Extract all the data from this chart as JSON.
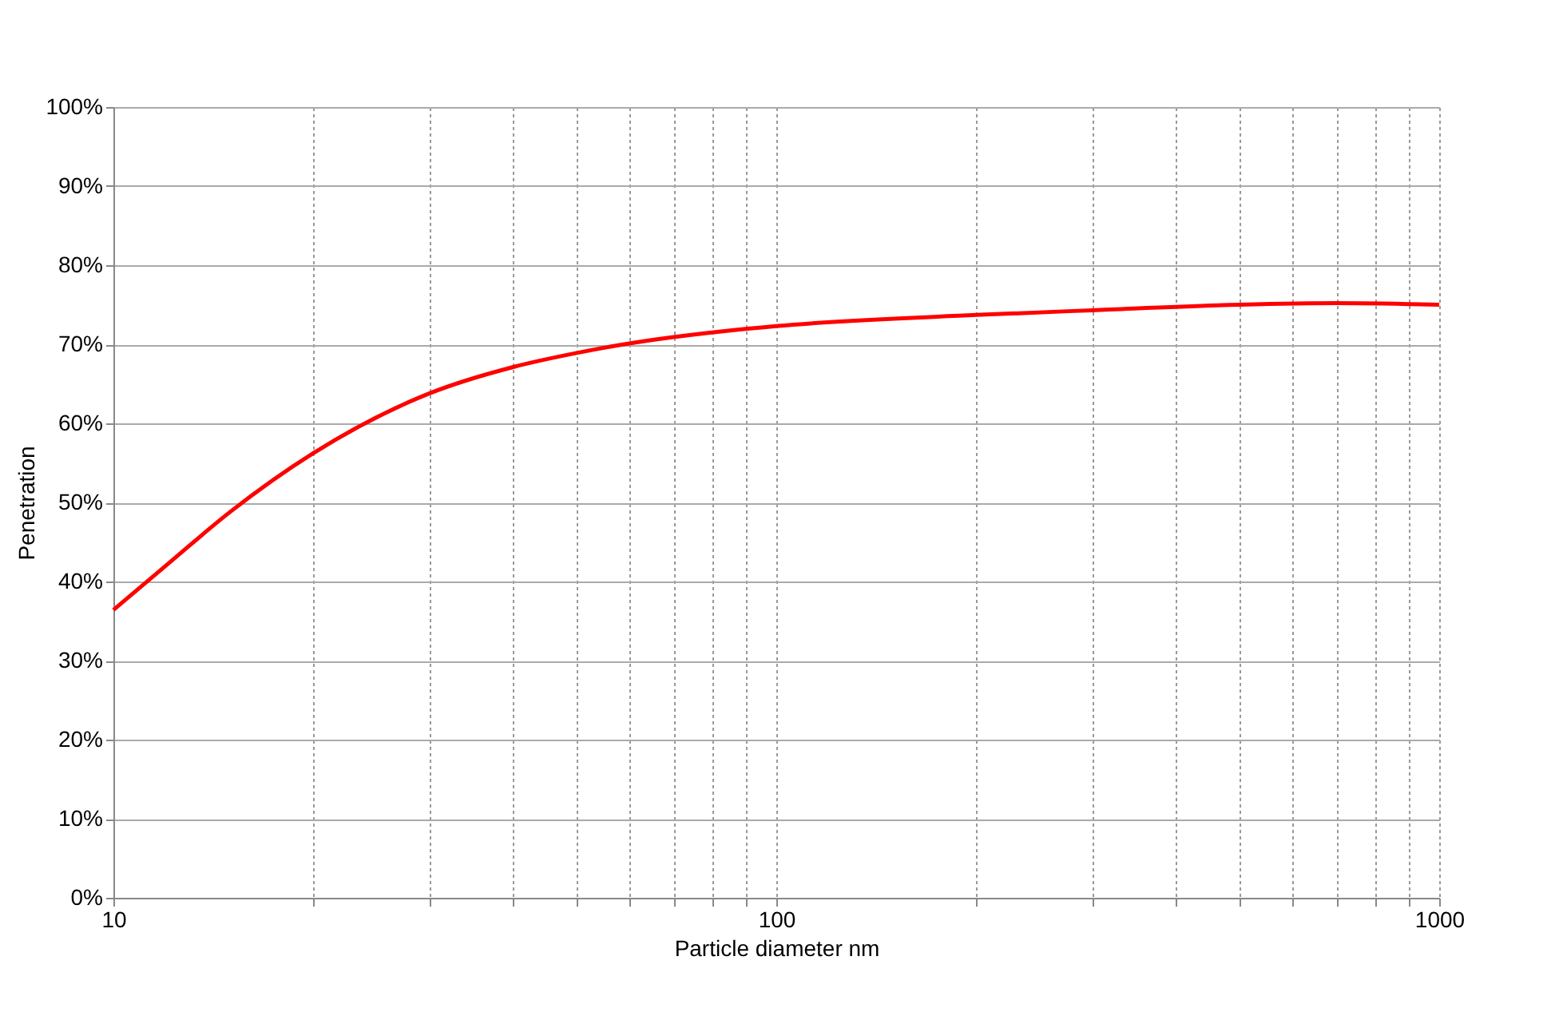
{
  "chart_data": {
    "type": "line",
    "xlabel": "Particle diameter nm",
    "ylabel": "Penetration",
    "log": "x",
    "grid": true,
    "marker": "none",
    "line_style": "solid",
    "xlim": [
      10,
      1000
    ],
    "ylim": [
      0,
      100
    ],
    "xticks": [
      10,
      {
        "value": 20,
        "label": null
      },
      {
        "value": 30,
        "label": null
      },
      {
        "value": 40,
        "label": null
      },
      {
        "value": 50,
        "label": null
      },
      {
        "value": 60,
        "label": null
      },
      {
        "value": 70,
        "label": null
      },
      {
        "value": 80,
        "label": null
      },
      {
        "value": 90,
        "label": null
      },
      100,
      {
        "value": 200,
        "label": null
      },
      {
        "value": 300,
        "label": null
      },
      {
        "value": 400,
        "label": null
      },
      {
        "value": 500,
        "label": null
      },
      {
        "value": 600,
        "label": null
      },
      {
        "value": 700,
        "label": null
      },
      {
        "value": 800,
        "label": null
      },
      {
        "value": 900,
        "label": null
      },
      1000
    ],
    "yticks": [
      {
        "value": 0,
        "label": "0%"
      },
      {
        "value": 10,
        "label": "10%"
      },
      {
        "value": 20,
        "label": "20%"
      },
      {
        "value": 30,
        "label": "30%"
      },
      {
        "value": 40,
        "label": "40%"
      },
      {
        "value": 50,
        "label": "50%"
      },
      {
        "value": 60,
        "label": "60%"
      },
      {
        "value": 70,
        "label": "70%"
      },
      {
        "value": 80,
        "label": "80%"
      },
      {
        "value": 90,
        "label": "90%"
      },
      {
        "value": 100,
        "label": "100%"
      }
    ],
    "x": [
      10,
      12,
      15,
      20,
      30,
      40,
      50,
      60,
      70,
      100,
      200,
      300,
      500,
      700,
      1000
    ],
    "series": [
      {
        "color": "#ff0000",
        "values": [
          36.4,
          42.0,
          48.8,
          56.2,
          63.8,
          67.1,
          68.9,
          70.1,
          70.9,
          72.3,
          73.7,
          74.3,
          75.0,
          75.2,
          75.0
        ]
      }
    ]
  }
}
